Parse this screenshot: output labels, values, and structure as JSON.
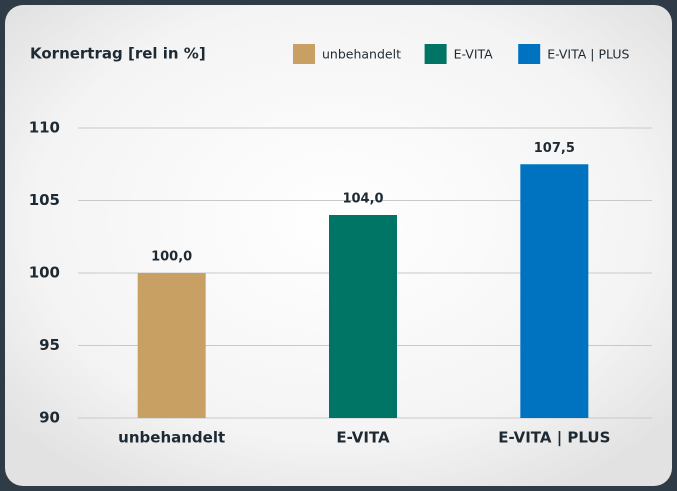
{
  "chart_data": {
    "type": "bar",
    "title": "Kornertrag [rel in %]",
    "categories": [
      "unbehandelt",
      "E-VITA",
      "E-VITA | PLUS"
    ],
    "values": [
      100.0,
      104.0,
      107.5
    ],
    "value_labels": [
      "100,0",
      "104,0",
      "107,5"
    ],
    "colors": [
      "#c8a063",
      "#007565",
      "#0073c0"
    ],
    "ylim": [
      90,
      110
    ],
    "yticks": [
      90,
      95,
      100,
      105,
      110
    ],
    "grid": true,
    "legend": "top-right"
  }
}
